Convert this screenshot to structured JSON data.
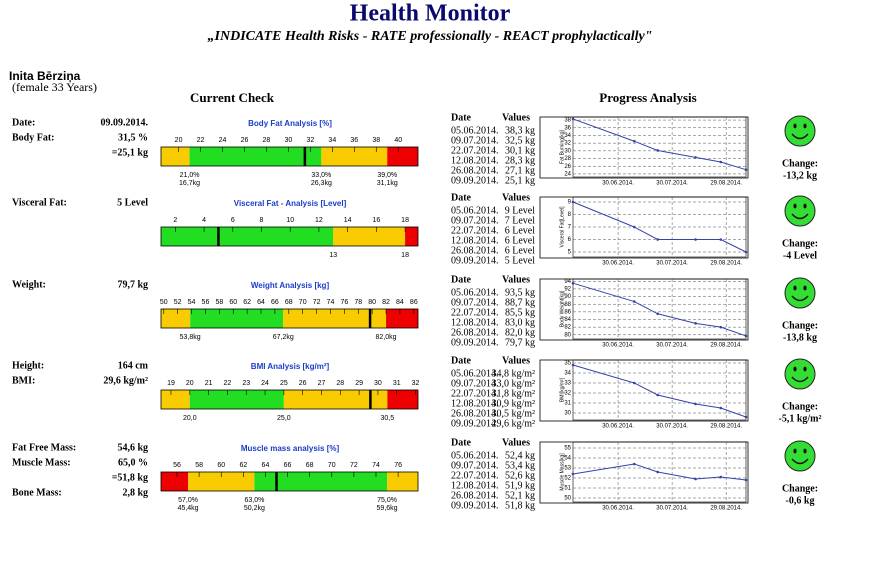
{
  "header": {
    "title": "Health Monitor",
    "subtitle": "„INDICATE Health Risks - RATE professionally - REACT prophylactically\""
  },
  "person": {
    "name": "Inita Bērziņa",
    "details": "(female 33 Years)"
  },
  "sections": {
    "current": "Current Check",
    "progress": "Progress Analysis"
  },
  "table_headers": {
    "date": "Date",
    "values": "Values"
  },
  "change_label": "Change:",
  "rows": [
    {
      "facts": [
        {
          "label": "Date:",
          "value": "09.09.2014."
        },
        {
          "label": "Body Fat:",
          "value": "31,5 %"
        },
        {
          "value": "=25,1 kg"
        }
      ],
      "gauge": {
        "title": "Body Fat Analysis [%]",
        "xlim": [
          18.4,
          41.8
        ],
        "ticks": [
          20,
          22,
          24,
          26,
          28,
          30,
          32,
          34,
          36,
          38,
          40
        ],
        "band_colors": [
          "#f8cc00",
          "#22dd22",
          "#f8cc00",
          "#ee0000"
        ],
        "thresholds": [
          21,
          33,
          39
        ],
        "threshold_labels": [
          [
            "21,0%",
            "16,7kg"
          ],
          [
            "33,0%",
            "26,3kg"
          ],
          [
            "39,0%",
            "31,1kg"
          ]
        ],
        "value": 31.5
      },
      "chart": {
        "type": "line",
        "ylabel": "Fat Burning[kg]",
        "x": [
          "05.06.2014.",
          "09.07.2014.",
          "22.07.2014.",
          "12.08.2014.",
          "26.08.2014.",
          "09.09.2014."
        ],
        "values": [
          38.3,
          32.5,
          30.1,
          28.3,
          27.1,
          25.1
        ],
        "value_labels": [
          "38,3 kg",
          "32,5 kg",
          "30,1 kg",
          "28,3 kg",
          "27,1 kg",
          "25,1 kg"
        ],
        "xlim": [
          "05.06.2014.",
          "09.09.2014."
        ],
        "xticks": [
          "30.06.2014.",
          "30.07.2014.",
          "29.08.2014."
        ],
        "ylim": [
          23.2,
          38.8
        ],
        "yticks": [
          24,
          26,
          28,
          30,
          32,
          34,
          36,
          38
        ],
        "color": "#3344aa"
      },
      "change": "-13,2 kg"
    },
    {
      "facts": [
        {
          "label": "Visceral Fat:",
          "value": "5 Level"
        }
      ],
      "gauge": {
        "title": "Visceral Fat - Analysis [Level]",
        "xlim": [
          1,
          18.9
        ],
        "ticks": [
          2,
          4,
          6,
          8,
          10,
          12,
          14,
          16,
          18
        ],
        "band_colors": [
          "#22dd22",
          "#f8cc00",
          "#ee0000"
        ],
        "thresholds": [
          13,
          18
        ],
        "value": 5
      },
      "chart": {
        "type": "line",
        "ylabel": "Visceral Fat[Level]",
        "x": [
          "05.06.2014.",
          "09.07.2014.",
          "22.07.2014.",
          "12.08.2014.",
          "26.08.2014.",
          "09.09.2014."
        ],
        "values": [
          9,
          7,
          6,
          6,
          6,
          5
        ],
        "value_labels": [
          "9 Level",
          "7 Level",
          "6 Level",
          "6 Level",
          "6 Level",
          "5 Level"
        ],
        "xlim": [
          "05.06.2014.",
          "09.09.2014."
        ],
        "xticks": [
          "30.06.2014.",
          "30.07.2014.",
          "29.08.2014."
        ],
        "ylim": [
          4.6,
          9.4
        ],
        "yticks": [
          5,
          6,
          7,
          8,
          9
        ],
        "color": "#3344aa"
      },
      "change": "-4 Level"
    },
    {
      "facts": [
        {
          "label": "Weight:",
          "value": "79,7 kg"
        }
      ],
      "gauge": {
        "title": "Weight Analysis [kg]",
        "xlim": [
          49.6,
          86.6
        ],
        "ticks": [
          50,
          52,
          54,
          56,
          58,
          60,
          62,
          64,
          66,
          68,
          70,
          72,
          74,
          76,
          78,
          80,
          82,
          84,
          86
        ],
        "band_colors": [
          "#f8cc00",
          "#22dd22",
          "#f8cc00",
          "#ee0000"
        ],
        "thresholds": [
          53.8,
          67.2,
          82
        ],
        "threshold_labels": [
          [
            "53,8kg"
          ],
          [
            "67,2kg"
          ],
          [
            "82,0kg"
          ]
        ],
        "value": 79.7
      },
      "chart": {
        "type": "line",
        "ylabel": "Body Weight[kg]",
        "x": [
          "05.06.2014.",
          "09.07.2014.",
          "22.07.2014.",
          "12.08.2014.",
          "26.08.2014.",
          "09.09.2014."
        ],
        "values": [
          93.5,
          88.7,
          85.5,
          83.0,
          82.0,
          79.7
        ],
        "value_labels": [
          "93,5 kg",
          "88,7 kg",
          "85,5 kg",
          "83,0 kg",
          "82,0 kg",
          "79,7 kg"
        ],
        "xlim": [
          "05.06.2014.",
          "09.09.2014."
        ],
        "xticks": [
          "30.06.2014.",
          "30.07.2014.",
          "29.08.2014."
        ],
        "ylim": [
          78.9,
          94.6
        ],
        "yticks": [
          80,
          82,
          84,
          86,
          88,
          90,
          92,
          94
        ],
        "color": "#3344aa"
      },
      "change": "-13,8 kg"
    },
    {
      "facts": [
        {
          "label": "Height:",
          "value": "164 cm"
        },
        {
          "label": "BMI:",
          "value": "29,6 kg/m²"
        }
      ],
      "gauge": {
        "title": "BMI Analysis [kg/m²]",
        "xlim": [
          18.47,
          32.13
        ],
        "ticks": [
          19,
          20,
          21,
          22,
          23,
          24,
          25,
          26,
          27,
          28,
          29,
          30,
          31,
          32
        ],
        "band_colors": [
          "#f8cc00",
          "#22dd22",
          "#f8cc00",
          "#ee0000"
        ],
        "thresholds": [
          20,
          25,
          30.5
        ],
        "threshold_labels": [
          [
            "20,0"
          ],
          [
            "25,0"
          ],
          [
            "30,5"
          ]
        ],
        "value": 29.6
      },
      "chart": {
        "type": "line",
        "ylabel": "BMI[kg/m²]",
        "x": [
          "05.06.2014.",
          "09.07.2014.",
          "22.07.2014.",
          "12.08.2014.",
          "26.08.2014.",
          "09.09.2014."
        ],
        "values": [
          34.8,
          33.0,
          31.8,
          30.9,
          30.5,
          29.6
        ],
        "value_labels": [
          "34,8 kg/m²",
          "33,0 kg/m²",
          "31,8 kg/m²",
          "30,9 kg/m²",
          "30,5 kg/m²",
          "29,6 kg/m²"
        ],
        "xlim": [
          "05.06.2014.",
          "09.09.2014."
        ],
        "xticks": [
          "30.06.2014.",
          "30.07.2014.",
          "29.08.2014."
        ],
        "ylim": [
          29.3,
          35.3
        ],
        "yticks": [
          30,
          31,
          32,
          33,
          34,
          35
        ],
        "color": "#3344aa"
      },
      "change": "-5,1 kg/m²"
    },
    {
      "facts": [
        {
          "label": "Fat Free Mass:",
          "value": "54,6 kg"
        },
        {
          "label": "Muscle Mass:",
          "value": "65,0 %"
        },
        {
          "value": "=51,8 kg"
        },
        {
          "label": "Bone Mass:",
          "value": "2,8 kg"
        }
      ],
      "gauge": {
        "title": "Muscle mass analysis [%]",
        "xlim": [
          54.55,
          77.8
        ],
        "ticks": [
          56,
          58,
          60,
          62,
          64,
          66,
          68,
          70,
          72,
          74,
          76
        ],
        "band_colors": [
          "#ee0000",
          "#f8cc00",
          "#22dd22",
          "#f8cc00"
        ],
        "thresholds": [
          57,
          63,
          75
        ],
        "threshold_labels": [
          [
            "57,0%",
            "45,4kg"
          ],
          [
            "63,0%",
            "50,2kg"
          ],
          [
            "75,0%",
            "59,6kg"
          ]
        ],
        "value": 65.0
      },
      "chart": {
        "type": "line",
        "ylabel": "Muscle Mass[kg]",
        "x": [
          "05.06.2014.",
          "09.07.2014.",
          "22.07.2014.",
          "12.08.2014.",
          "26.08.2014.",
          "09.09.2014."
        ],
        "values": [
          52.4,
          53.4,
          52.6,
          51.9,
          52.1,
          51.8
        ],
        "value_labels": [
          "52,4 kg",
          "53,4 kg",
          "52,6 kg",
          "51,9 kg",
          "52,1 kg",
          "51,8 kg"
        ],
        "xlim": [
          "05.06.2014.",
          "09.09.2014."
        ],
        "xticks": [
          "30.06.2014.",
          "30.07.2014.",
          "29.08.2014."
        ],
        "ylim": [
          49.6,
          55.6
        ],
        "yticks": [
          50,
          51,
          52,
          53,
          54,
          55
        ],
        "color": "#3344aa"
      },
      "change": "-0,6 kg"
    }
  ]
}
